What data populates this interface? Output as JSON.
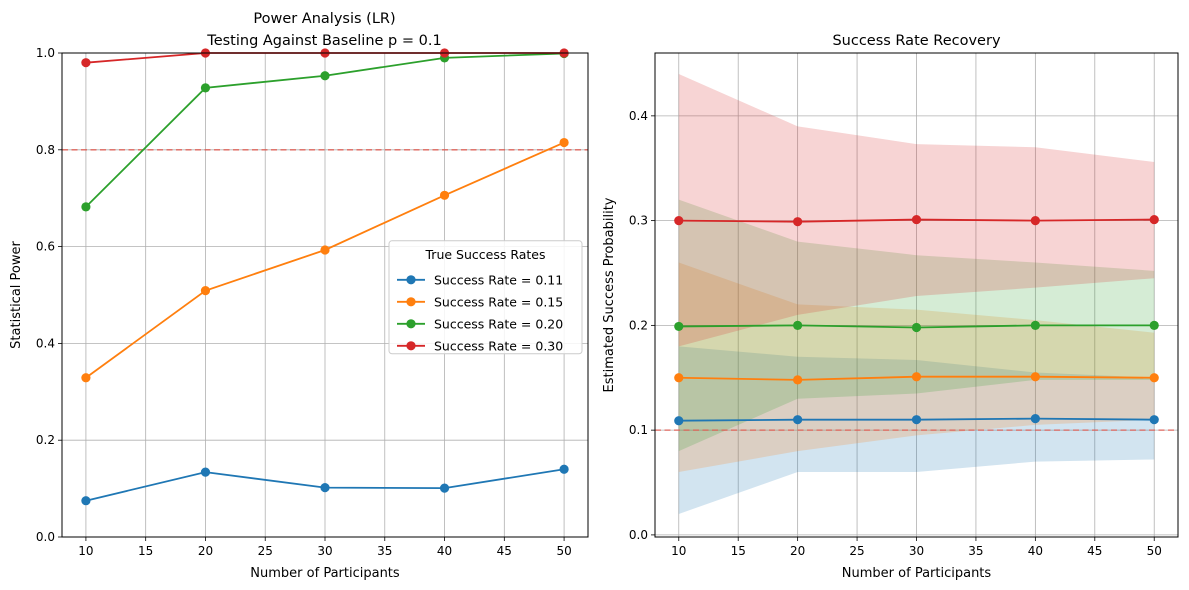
{
  "chart_data": [
    {
      "type": "line",
      "title": "Power Analysis (LR)",
      "subtitle": "Testing Against Baseline p = 0.1",
      "xlabel": "Number of Participants",
      "ylabel": "Statistical Power",
      "xlim": [
        8,
        52
      ],
      "ylim": [
        0,
        1
      ],
      "xticks": [
        10,
        15,
        20,
        25,
        30,
        35,
        40,
        45,
        50
      ],
      "yticks": [
        0.0,
        0.2,
        0.4,
        0.6,
        0.8,
        1.0
      ],
      "grid": true,
      "x": [
        10,
        20,
        30,
        40,
        50
      ],
      "reference_line": {
        "y": 0.8,
        "color": "#e05a50",
        "style": "dashed"
      },
      "legend": {
        "title": "True Success Rates",
        "placement": "center-right"
      },
      "series": [
        {
          "name": "Success Rate = 0.11",
          "color": "#1f77b4",
          "values": [
            0.075,
            0.134,
            0.102,
            0.101,
            0.14
          ]
        },
        {
          "name": "Success Rate = 0.15",
          "color": "#ff7f0e",
          "values": [
            0.329,
            0.509,
            0.593,
            0.706,
            0.815
          ]
        },
        {
          "name": "Success Rate = 0.20",
          "color": "#2ca02c",
          "values": [
            0.682,
            0.928,
            0.953,
            0.99,
            0.999
          ]
        },
        {
          "name": "Success Rate = 0.30",
          "color": "#d62728",
          "values": [
            0.98,
            1.0,
            1.0,
            1.0,
            1.0
          ]
        }
      ]
    },
    {
      "type": "line",
      "title": "Success Rate Recovery",
      "xlabel": "Number of Participants",
      "ylabel": "Estimated Success Probability",
      "xlim": [
        8,
        52
      ],
      "ylim": [
        -0.002,
        0.46
      ],
      "xticks": [
        10,
        15,
        20,
        25,
        30,
        35,
        40,
        45,
        50
      ],
      "yticks": [
        0.0,
        0.1,
        0.2,
        0.3,
        0.4
      ],
      "grid": true,
      "x": [
        10,
        20,
        30,
        40,
        50
      ],
      "reference_line": {
        "y": 0.1,
        "color": "#e05a50",
        "style": "dashed"
      },
      "series": [
        {
          "color": "#1f77b4",
          "values": [
            0.109,
            0.11,
            0.11,
            0.111,
            0.11
          ],
          "band_low": [
            0.02,
            0.06,
            0.06,
            0.07,
            0.072
          ],
          "band_high": [
            0.18,
            0.17,
            0.167,
            0.155,
            0.15
          ]
        },
        {
          "color": "#ff7f0e",
          "values": [
            0.15,
            0.148,
            0.151,
            0.151,
            0.15
          ],
          "band_low": [
            0.06,
            0.08,
            0.095,
            0.105,
            0.11
          ],
          "band_high": [
            0.26,
            0.22,
            0.215,
            0.205,
            0.193
          ]
        },
        {
          "color": "#2ca02c",
          "values": [
            0.199,
            0.2,
            0.198,
            0.2,
            0.2
          ],
          "band_low": [
            0.08,
            0.13,
            0.135,
            0.148,
            0.148
          ],
          "band_high": [
            0.32,
            0.28,
            0.267,
            0.26,
            0.252
          ]
        },
        {
          "color": "#d62728",
          "values": [
            0.3,
            0.299,
            0.301,
            0.3,
            0.301
          ],
          "band_low": [
            0.18,
            0.21,
            0.228,
            0.236,
            0.245
          ],
          "band_high": [
            0.44,
            0.39,
            0.373,
            0.37,
            0.356
          ]
        }
      ]
    }
  ]
}
